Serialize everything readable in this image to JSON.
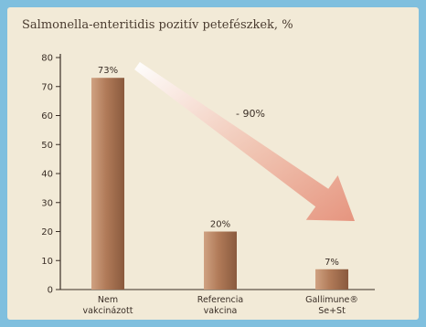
{
  "chart_data": {
    "type": "bar",
    "title": "Salmonella-enteritidis pozitív petefészkek, %",
    "xlabel": "",
    "ylabel": "",
    "ylim": [
      0,
      80
    ],
    "yticks": [
      0,
      10,
      20,
      30,
      40,
      50,
      60,
      70,
      80
    ],
    "categories": [
      [
        "Nem",
        "vakcinázott"
      ],
      [
        "Referencia",
        "vakcina"
      ],
      [
        "Gallimune®",
        "Se+St"
      ]
    ],
    "values": [
      73,
      20,
      7
    ],
    "data_labels": [
      "73%",
      "20%",
      "7%"
    ],
    "annotation": "- 90%",
    "colors": {
      "bar_light": "#d0a282",
      "bar_dark": "#8a5a3e",
      "arrow_start": "#ffffff",
      "arrow_end": "#e5907a"
    }
  }
}
